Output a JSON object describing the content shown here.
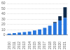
{
  "chart_data": {
    "type": "bar",
    "stacked": true,
    "grid": true,
    "categories": [
      "2010",
      "2011",
      "2012",
      "2013",
      "2014",
      "2015",
      "2016",
      "2017",
      "2018",
      "2019",
      "2020",
      "2021"
    ],
    "series": [
      {
        "color": "#2876dd",
        "values": [
          3,
          4,
          5,
          6,
          7,
          9,
          11,
          14,
          18,
          23,
          28,
          33
        ]
      },
      {
        "color": "#0f2a4a",
        "values": [
          0,
          0,
          0,
          0,
          0,
          0,
          0,
          0,
          0,
          2,
          8,
          20
        ]
      }
    ],
    "ylim": [
      0,
      60
    ],
    "yticks": [
      0,
      10,
      20,
      30,
      40,
      50,
      60
    ]
  }
}
